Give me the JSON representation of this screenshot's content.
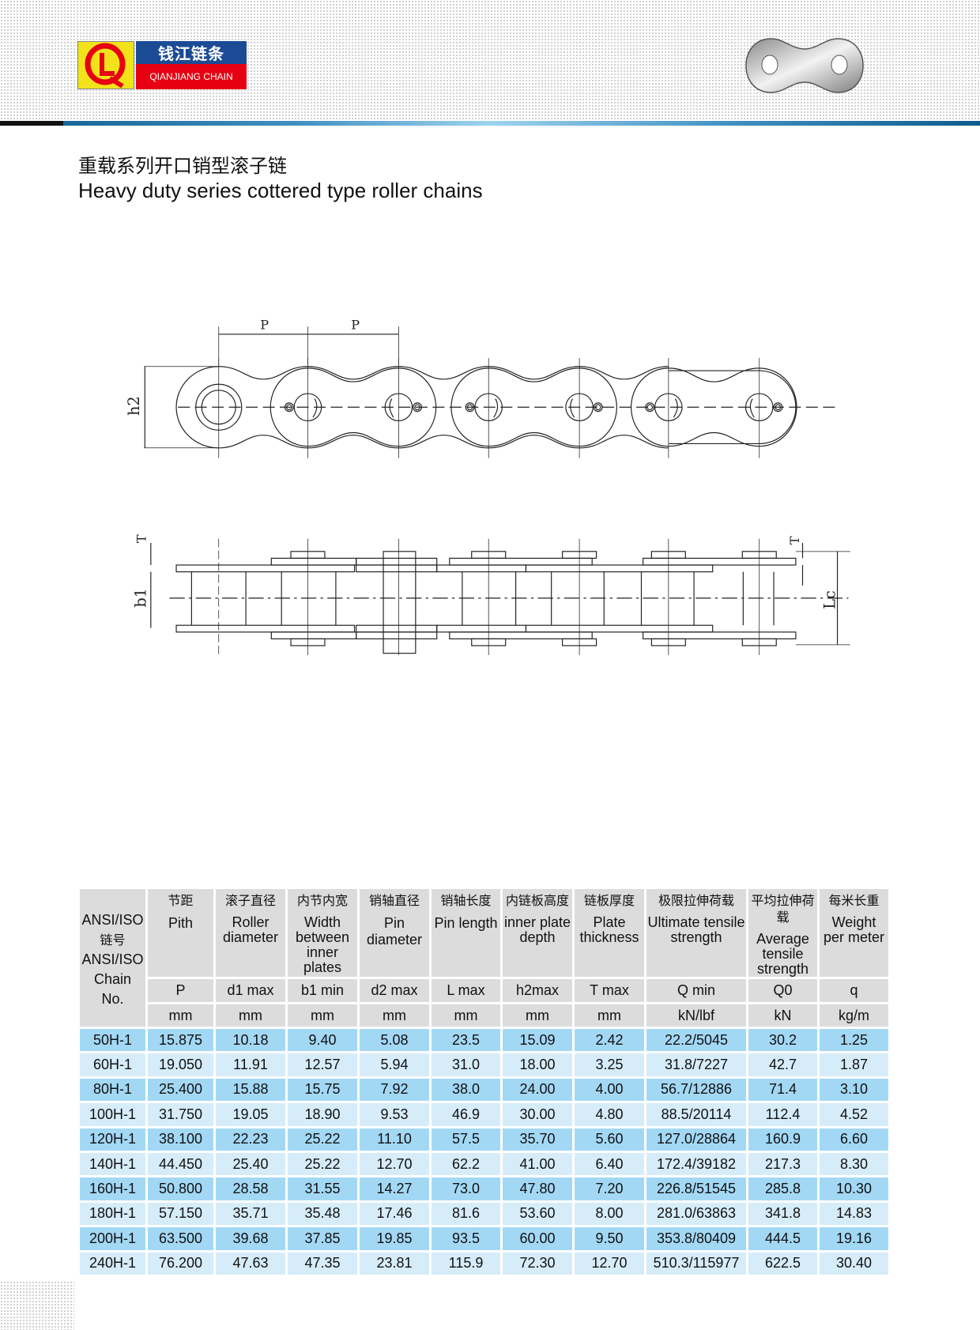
{
  "brand": {
    "logo_letters": "QL",
    "name_cn": "钱江链条",
    "name_en": "QIANJIANG CHAIN",
    "colors": {
      "yellow": "#f1e21a",
      "blue": "#1c4b95",
      "red": "#e60012"
    }
  },
  "title": {
    "cn": "重载系列开口销型滚子链",
    "en": "Heavy duty series cottered type roller chains"
  },
  "diagram": {
    "labels": {
      "pitch": "P",
      "h2": "h2",
      "t": "T",
      "b1": "b1",
      "lc": "Lc"
    }
  },
  "table": {
    "chain_no_header": {
      "l1": "ANSI/ISO",
      "l2": "链号",
      "l3": "ANSI/ISO",
      "l4": "Chain",
      "l5": "No."
    },
    "columns": [
      {
        "cn": "节距",
        "en": "Pith",
        "symbol": "P",
        "unit": "mm"
      },
      {
        "cn": "滚子直径",
        "en": "Roller diameter",
        "symbol": "d1 max",
        "unit": "mm"
      },
      {
        "cn": "内节内宽",
        "en": "Width between inner plates",
        "symbol": "b1 min",
        "unit": "mm"
      },
      {
        "cn": "销轴直径",
        "en": "Pin diameter",
        "symbol": "d2 max",
        "unit": "mm"
      },
      {
        "cn": "销轴长度",
        "en": "Pin length",
        "symbol": "L max",
        "unit": "mm"
      },
      {
        "cn": "内链板高度",
        "en": "inner plate depth",
        "symbol": "h2max",
        "unit": "mm"
      },
      {
        "cn": "链板厚度",
        "en": "Plate thickness",
        "symbol": "T max",
        "unit": "mm"
      },
      {
        "cn": "极限拉伸荷载",
        "en": "Ultimate tensile strength",
        "symbol": "Q min",
        "unit": "kN/lbf"
      },
      {
        "cn": "平均拉伸荷载",
        "en": "Average tensile strength",
        "symbol": "Q0",
        "unit": "kN"
      },
      {
        "cn": "每米长重",
        "en": "Weight per meter",
        "symbol": "q",
        "unit": "kg/m"
      }
    ],
    "rows": [
      [
        "50H-1",
        "15.875",
        "10.18",
        "9.40",
        "5.08",
        "23.5",
        "15.09",
        "2.42",
        "22.2/5045",
        "30.2",
        "1.25"
      ],
      [
        "60H-1",
        "19.050",
        "11.91",
        "12.57",
        "5.94",
        "31.0",
        "18.00",
        "3.25",
        "31.8/7227",
        "42.7",
        "1.87"
      ],
      [
        "80H-1",
        "25.400",
        "15.88",
        "15.75",
        "7.92",
        "38.0",
        "24.00",
        "4.00",
        "56.7/12886",
        "71.4",
        "3.10"
      ],
      [
        "100H-1",
        "31.750",
        "19.05",
        "18.90",
        "9.53",
        "46.9",
        "30.00",
        "4.80",
        "88.5/20114",
        "112.4",
        "4.52"
      ],
      [
        "120H-1",
        "38.100",
        "22.23",
        "25.22",
        "11.10",
        "57.5",
        "35.70",
        "5.60",
        "127.0/28864",
        "160.9",
        "6.60"
      ],
      [
        "140H-1",
        "44.450",
        "25.40",
        "25.22",
        "12.70",
        "62.2",
        "41.00",
        "6.40",
        "172.4/39182",
        "217.3",
        "8.30"
      ],
      [
        "160H-1",
        "50.800",
        "28.58",
        "31.55",
        "14.27",
        "73.0",
        "47.80",
        "7.20",
        "226.8/51545",
        "285.8",
        "10.30"
      ],
      [
        "180H-1",
        "57.150",
        "35.71",
        "35.48",
        "17.46",
        "81.6",
        "53.60",
        "8.00",
        "281.0/63863",
        "341.8",
        "14.83"
      ],
      [
        "200H-1",
        "63.500",
        "39.68",
        "37.85",
        "19.85",
        "93.5",
        "60.00",
        "9.50",
        "353.8/80409",
        "444.5",
        "19.16"
      ],
      [
        "240H-1",
        "76.200",
        "47.63",
        "47.35",
        "23.81",
        "115.9",
        "72.30",
        "12.70",
        "510.3/115977",
        "622.5",
        "30.40"
      ]
    ],
    "colors": {
      "header": "#dcdcdc",
      "row_dark": "#a3d8f5",
      "row_light": "#d6ecf9"
    }
  }
}
